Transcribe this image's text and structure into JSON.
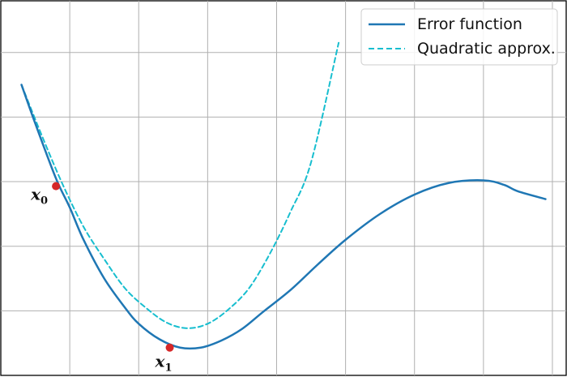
{
  "chart_data": {
    "type": "line",
    "title": "",
    "xlabel": "",
    "ylabel": "",
    "xlim": [
      0,
      8.2
    ],
    "ylim": [
      0,
      5.8
    ],
    "grid": true,
    "ticks_labeled": false,
    "legend_position": "top-right",
    "series": [
      {
        "name": "Error function",
        "style": "solid",
        "color": "#1f77b4",
        "x": [
          0.3,
          0.5,
          0.8,
          1.0,
          1.2,
          1.5,
          1.8,
          2.0,
          2.3,
          2.6,
          2.9,
          3.2,
          3.5,
          3.8,
          4.2,
          4.6,
          5.0,
          5.5,
          6.0,
          6.5,
          7.0,
          7.3,
          7.5,
          7.9
        ],
        "y": [
          4.5,
          3.9,
          3.05,
          2.6,
          2.1,
          1.5,
          1.05,
          0.8,
          0.56,
          0.43,
          0.43,
          0.54,
          0.72,
          0.98,
          1.32,
          1.72,
          2.1,
          2.5,
          2.8,
          2.98,
          3.02,
          2.95,
          2.85,
          2.73
        ]
      },
      {
        "name": "Quadratic approx.",
        "style": "dashed",
        "color": "#17becf",
        "x": [
          0.3,
          0.6,
          0.9,
          1.2,
          1.5,
          1.8,
          2.1,
          2.4,
          2.7,
          3.0,
          3.3,
          3.6,
          3.9,
          4.2,
          4.5,
          4.9
        ],
        "y": [
          4.5,
          3.7,
          2.95,
          2.3,
          1.8,
          1.35,
          1.05,
          0.82,
          0.73,
          0.8,
          1.02,
          1.35,
          1.88,
          2.53,
          3.3,
          5.15
        ]
      }
    ],
    "points": [
      {
        "label": "x",
        "sub": "0",
        "x": 0.8,
        "y": 2.93,
        "color": "#d62728"
      },
      {
        "label": "x",
        "sub": "1",
        "x": 2.45,
        "y": 0.43,
        "color": "#d62728"
      }
    ]
  }
}
